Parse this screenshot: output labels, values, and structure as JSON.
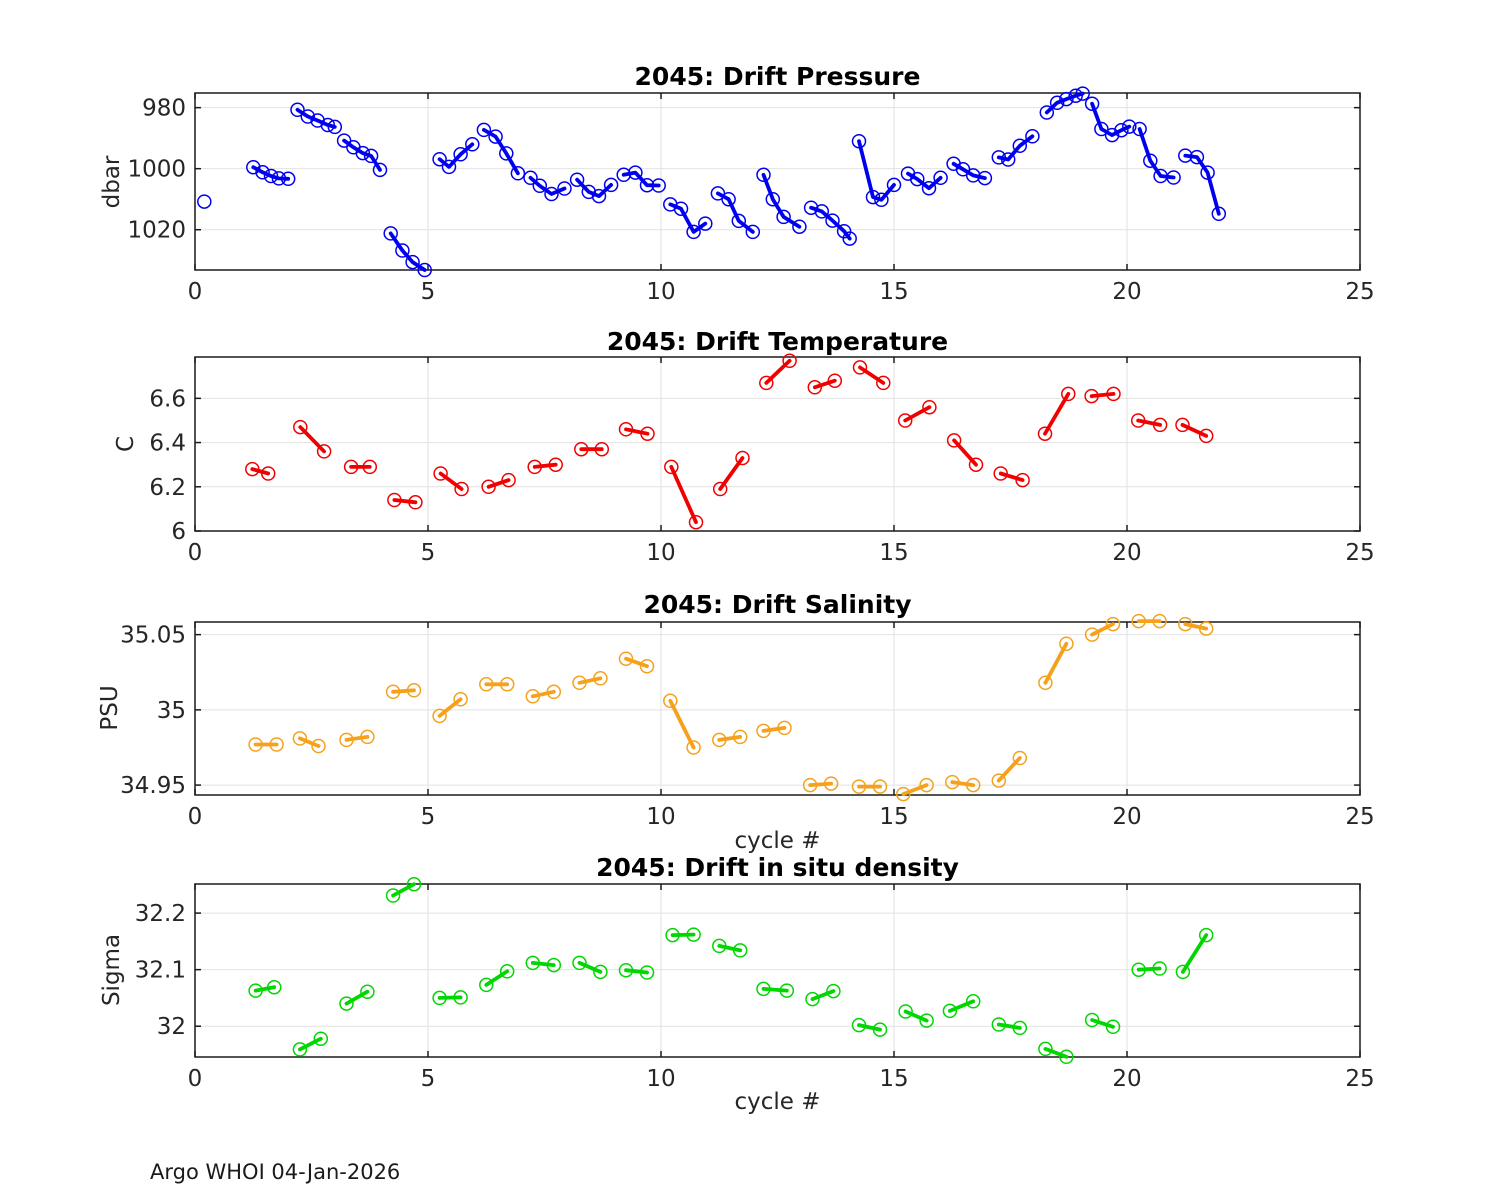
{
  "figure": {
    "footnote": "Argo WHOI 04-Jan-2026",
    "background": "#ffffff"
  },
  "axis_style": {
    "frame_color": "#1a1a1a",
    "grid_color": "#e2e2e2",
    "tick_label_color": "#262626"
  },
  "chart_data": [
    {
      "id": "pressure",
      "type": "line",
      "marker": "open-circle",
      "title": "2045: Drift Pressure",
      "ylabel": "dbar",
      "xlabel": "",
      "color": "#0000f0",
      "xlim": [
        0,
        25
      ],
      "xticks": [
        0,
        5,
        10,
        15,
        20,
        25
      ],
      "xtick_labels": [
        "0",
        "5",
        "10",
        "15",
        "20",
        "25"
      ],
      "ylim": [
        975.2,
        1033.2
      ],
      "y_reversed": true,
      "yticks": [
        980,
        1000,
        1020
      ],
      "ytick_labels": [
        "980",
        "1000",
        "1020"
      ],
      "grid": true,
      "segments": [
        [
          [
            0.2,
            1010.8
          ]
        ],
        [
          [
            1.25,
            999.5
          ],
          [
            1.45,
            1001.2
          ],
          [
            1.63,
            1002.4
          ],
          [
            1.8,
            1003.2
          ],
          [
            2.0,
            1003.3
          ]
        ],
        [
          [
            2.2,
            980.7
          ],
          [
            2.42,
            982.9
          ],
          [
            2.63,
            984.2
          ],
          [
            2.85,
            985.7
          ],
          [
            3.0,
            986.3
          ]
        ],
        [
          [
            3.2,
            990.8
          ],
          [
            3.4,
            993.0
          ],
          [
            3.6,
            994.9
          ],
          [
            3.78,
            995.8
          ],
          [
            3.97,
            1000.4
          ]
        ],
        [
          [
            4.2,
            1021.2
          ],
          [
            4.45,
            1026.8
          ],
          [
            4.67,
            1030.6
          ],
          [
            4.93,
            1033.2
          ]
        ],
        [
          [
            5.25,
            996.9
          ],
          [
            5.45,
            999.4
          ],
          [
            5.7,
            995.3
          ],
          [
            5.95,
            992.0
          ]
        ],
        [
          [
            6.2,
            987.3
          ],
          [
            6.45,
            989.5
          ],
          [
            6.68,
            995.0
          ],
          [
            6.93,
            1001.5
          ]
        ],
        [
          [
            7.2,
            1003.0
          ],
          [
            7.4,
            1005.6
          ],
          [
            7.65,
            1008.3
          ],
          [
            7.93,
            1006.5
          ]
        ],
        [
          [
            8.2,
            1003.6
          ],
          [
            8.45,
            1007.6
          ],
          [
            8.67,
            1009.0
          ],
          [
            8.93,
            1005.3
          ]
        ],
        [
          [
            9.2,
            1002.0
          ],
          [
            9.45,
            1001.3
          ],
          [
            9.7,
            1005.4
          ],
          [
            9.95,
            1005.5
          ]
        ],
        [
          [
            10.2,
            1011.7
          ],
          [
            10.43,
            1013.1
          ],
          [
            10.7,
            1020.7
          ],
          [
            10.95,
            1018.0
          ]
        ],
        [
          [
            11.22,
            1008.1
          ],
          [
            11.45,
            1010.0
          ],
          [
            11.67,
            1017.1
          ],
          [
            11.97,
            1020.7
          ]
        ],
        [
          [
            12.2,
            1002.0
          ],
          [
            12.4,
            1010.0
          ],
          [
            12.63,
            1015.8
          ],
          [
            12.97,
            1019.0
          ]
        ],
        [
          [
            13.22,
            1012.8
          ],
          [
            13.45,
            1014.0
          ],
          [
            13.68,
            1017.0
          ],
          [
            13.93,
            1020.5
          ],
          [
            14.05,
            1022.9
          ]
        ],
        [
          [
            14.25,
            991.0
          ],
          [
            14.55,
            1009.3
          ],
          [
            14.73,
            1010.2
          ],
          [
            15.0,
            1005.3
          ]
        ],
        [
          [
            15.3,
            1001.6
          ],
          [
            15.5,
            1003.4
          ],
          [
            15.75,
            1006.4
          ],
          [
            16.0,
            1003.0
          ]
        ],
        [
          [
            16.28,
            998.4
          ],
          [
            16.48,
            1000.2
          ],
          [
            16.7,
            1002.2
          ],
          [
            16.95,
            1003.1
          ]
        ],
        [
          [
            17.25,
            996.3
          ],
          [
            17.45,
            997.0
          ],
          [
            17.7,
            992.5
          ],
          [
            17.97,
            989.4
          ]
        ],
        [
          [
            18.28,
            981.6
          ],
          [
            18.5,
            978.4
          ],
          [
            18.7,
            977.2
          ],
          [
            18.9,
            976.1
          ],
          [
            19.05,
            975.4
          ]
        ],
        [
          [
            19.25,
            978.7
          ],
          [
            19.45,
            987.0
          ],
          [
            19.68,
            989.0
          ],
          [
            19.88,
            987.4
          ],
          [
            20.05,
            986.2
          ]
        ],
        [
          [
            20.27,
            987.0
          ],
          [
            20.5,
            997.4
          ],
          [
            20.72,
            1002.4
          ],
          [
            21.0,
            1002.9
          ]
        ],
        [
          [
            21.25,
            995.7
          ],
          [
            21.5,
            996.2
          ],
          [
            21.73,
            1001.3
          ],
          [
            21.97,
            1014.8
          ]
        ]
      ]
    },
    {
      "id": "temperature",
      "type": "line",
      "marker": "open-circle",
      "title": "2045: Drift Temperature",
      "ylabel": "C",
      "xlabel": "",
      "color": "#f20000",
      "xlim": [
        0,
        25
      ],
      "xticks": [
        0,
        5,
        10,
        15,
        20,
        25
      ],
      "xtick_labels": [
        "0",
        "5",
        "10",
        "15",
        "20",
        "25"
      ],
      "ylim": [
        6.0,
        6.787
      ],
      "y_reversed": false,
      "yticks": [
        6,
        6.2,
        6.4,
        6.6
      ],
      "ytick_labels": [
        "6",
        "6.2",
        "6.4",
        "6.6"
      ],
      "grid": true,
      "segments": [
        [
          [
            1.23,
            6.28
          ],
          [
            1.57,
            6.26
          ]
        ],
        [
          [
            2.26,
            6.47
          ],
          [
            2.77,
            6.36
          ]
        ],
        [
          [
            3.35,
            6.29
          ],
          [
            3.75,
            6.29
          ]
        ],
        [
          [
            4.28,
            6.14
          ],
          [
            4.73,
            6.13
          ]
        ],
        [
          [
            5.27,
            6.26
          ],
          [
            5.72,
            6.19
          ]
        ],
        [
          [
            6.3,
            6.2
          ],
          [
            6.73,
            6.23
          ]
        ],
        [
          [
            7.29,
            6.29
          ],
          [
            7.74,
            6.3
          ]
        ],
        [
          [
            8.29,
            6.37
          ],
          [
            8.73,
            6.37
          ]
        ],
        [
          [
            9.25,
            6.46
          ],
          [
            9.71,
            6.44
          ]
        ],
        [
          [
            10.22,
            6.29
          ],
          [
            10.75,
            6.04
          ]
        ],
        [
          [
            11.27,
            6.19
          ],
          [
            11.75,
            6.33
          ]
        ],
        [
          [
            12.26,
            6.67
          ],
          [
            12.76,
            6.77
          ]
        ],
        [
          [
            13.3,
            6.65
          ],
          [
            13.73,
            6.68
          ]
        ],
        [
          [
            14.27,
            6.74
          ],
          [
            14.77,
            6.67
          ]
        ],
        [
          [
            15.24,
            6.5
          ],
          [
            15.76,
            6.56
          ]
        ],
        [
          [
            16.29,
            6.41
          ],
          [
            16.76,
            6.3
          ]
        ],
        [
          [
            17.29,
            6.26
          ],
          [
            17.76,
            6.23
          ]
        ],
        [
          [
            18.24,
            6.44
          ],
          [
            18.74,
            6.62
          ]
        ],
        [
          [
            19.24,
            6.61
          ],
          [
            19.71,
            6.62
          ]
        ],
        [
          [
            20.24,
            6.5
          ],
          [
            20.71,
            6.48
          ]
        ],
        [
          [
            21.19,
            6.48
          ],
          [
            21.7,
            6.43
          ]
        ]
      ]
    },
    {
      "id": "salinity",
      "type": "line",
      "marker": "open-circle",
      "title": "2045: Drift Salinity",
      "ylabel": "PSU",
      "xlabel": "cycle #",
      "color": "#f5a11c",
      "xlim": [
        0,
        25
      ],
      "xticks": [
        0,
        5,
        10,
        15,
        20,
        25
      ],
      "xtick_labels": [
        "0",
        "5",
        "10",
        "15",
        "20",
        "25"
      ],
      "ylim": [
        34.9434,
        35.0584
      ],
      "y_reversed": false,
      "yticks": [
        34.95,
        35,
        35.05
      ],
      "ytick_labels": [
        "34.95",
        "35",
        "35.05"
      ],
      "grid": true,
      "segments": [
        [
          [
            1.3,
            34.977
          ],
          [
            1.75,
            34.977
          ]
        ],
        [
          [
            2.25,
            34.981
          ],
          [
            2.65,
            34.976
          ]
        ],
        [
          [
            3.25,
            34.98
          ],
          [
            3.7,
            34.982
          ]
        ],
        [
          [
            4.25,
            35.012
          ],
          [
            4.7,
            35.013
          ]
        ],
        [
          [
            5.25,
            34.996
          ],
          [
            5.7,
            35.007
          ]
        ],
        [
          [
            6.25,
            35.017
          ],
          [
            6.7,
            35.017
          ]
        ],
        [
          [
            7.25,
            35.009
          ],
          [
            7.7,
            35.012
          ]
        ],
        [
          [
            8.25,
            35.018
          ],
          [
            8.7,
            35.021
          ]
        ],
        [
          [
            9.25,
            35.034
          ],
          [
            9.7,
            35.029
          ]
        ],
        [
          [
            10.2,
            35.006
          ],
          [
            10.7,
            34.975
          ]
        ],
        [
          [
            11.25,
            34.98
          ],
          [
            11.7,
            34.982
          ]
        ],
        [
          [
            12.2,
            34.986
          ],
          [
            12.65,
            34.988
          ]
        ],
        [
          [
            13.2,
            34.95
          ],
          [
            13.65,
            34.951
          ]
        ],
        [
          [
            14.25,
            34.949
          ],
          [
            14.7,
            34.949
          ]
        ],
        [
          [
            15.2,
            34.944
          ],
          [
            15.7,
            34.95
          ]
        ],
        [
          [
            16.25,
            34.952
          ],
          [
            16.7,
            34.95
          ]
        ],
        [
          [
            17.25,
            34.953
          ],
          [
            17.7,
            34.968
          ]
        ],
        [
          [
            18.25,
            35.018
          ],
          [
            18.7,
            35.044
          ]
        ],
        [
          [
            19.25,
            35.05
          ],
          [
            19.7,
            35.057
          ]
        ],
        [
          [
            20.25,
            35.059
          ],
          [
            20.7,
            35.059
          ]
        ],
        [
          [
            21.25,
            35.057
          ],
          [
            21.7,
            35.054
          ]
        ]
      ]
    },
    {
      "id": "density",
      "type": "line",
      "marker": "open-circle",
      "title": "2045: Drift in situ density",
      "ylabel": "Sigma",
      "xlabel": "cycle #",
      "color": "#00d600",
      "xlim": [
        0,
        25
      ],
      "xticks": [
        0,
        5,
        10,
        15,
        20,
        25
      ],
      "xtick_labels": [
        "0",
        "5",
        "10",
        "15",
        "20",
        "25"
      ],
      "ylim": [
        31.9456,
        32.2514
      ],
      "y_reversed": false,
      "yticks": [
        32,
        32.1,
        32.2
      ],
      "ytick_labels": [
        "32",
        "32.1",
        "32.2"
      ],
      "grid": true,
      "segments": [
        [
          [
            1.3,
            32.063
          ],
          [
            1.7,
            32.069
          ]
        ],
        [
          [
            2.25,
            31.959
          ],
          [
            2.7,
            31.978
          ]
        ],
        [
          [
            3.25,
            32.04
          ],
          [
            3.7,
            32.061
          ]
        ],
        [
          [
            4.25,
            32.231
          ],
          [
            4.7,
            32.251
          ]
        ],
        [
          [
            5.25,
            32.05
          ],
          [
            5.7,
            32.051
          ]
        ],
        [
          [
            6.25,
            32.073
          ],
          [
            6.7,
            32.097
          ]
        ],
        [
          [
            7.25,
            32.112
          ],
          [
            7.7,
            32.108
          ]
        ],
        [
          [
            8.25,
            32.112
          ],
          [
            8.7,
            32.096
          ]
        ],
        [
          [
            9.25,
            32.099
          ],
          [
            9.7,
            32.095
          ]
        ],
        [
          [
            10.25,
            32.161
          ],
          [
            10.7,
            32.162
          ]
        ],
        [
          [
            11.25,
            32.142
          ],
          [
            11.7,
            32.134
          ]
        ],
        [
          [
            12.2,
            32.066
          ],
          [
            12.7,
            32.063
          ]
        ],
        [
          [
            13.25,
            32.048
          ],
          [
            13.7,
            32.062
          ]
        ],
        [
          [
            14.25,
            32.002
          ],
          [
            14.7,
            31.994
          ]
        ],
        [
          [
            15.25,
            32.026
          ],
          [
            15.7,
            32.01
          ]
        ],
        [
          [
            16.2,
            32.027
          ],
          [
            16.7,
            32.044
          ]
        ],
        [
          [
            17.25,
            32.003
          ],
          [
            17.7,
            31.997
          ]
        ],
        [
          [
            18.25,
            31.96
          ],
          [
            18.7,
            31.946
          ]
        ],
        [
          [
            19.25,
            32.011
          ],
          [
            19.7,
            31.999
          ]
        ],
        [
          [
            20.25,
            32.1
          ],
          [
            20.7,
            32.102
          ]
        ],
        [
          [
            21.2,
            32.096
          ],
          [
            21.7,
            32.161
          ]
        ]
      ]
    }
  ]
}
